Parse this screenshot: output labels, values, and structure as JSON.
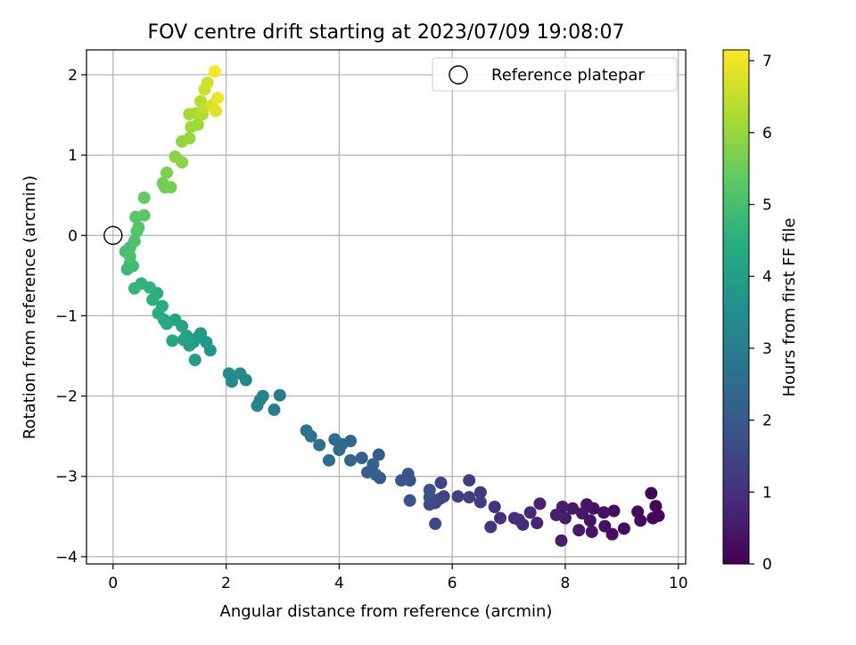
{
  "chart_data": {
    "type": "scatter",
    "title": "FOV centre drift starting at 2023/07/09 19:08:07",
    "xlabel": "Angular distance from reference (arcmin)",
    "ylabel": "Rotation from reference (arcmin)",
    "xlim": [
      -0.47,
      10.13
    ],
    "ylim": [
      -4.09,
      2.31
    ],
    "xticks": [
      0,
      2,
      4,
      6,
      8,
      10
    ],
    "yticks": [
      -4,
      -3,
      -2,
      -1,
      0,
      1,
      2
    ],
    "xtick_labels": [
      "0",
      "2",
      "4",
      "6",
      "8",
      "10"
    ],
    "ytick_labels": [
      "−4",
      "−3",
      "−2",
      "−1",
      "0",
      "1",
      "2"
    ],
    "grid": true,
    "legend": {
      "position": "top-right",
      "entries": [
        {
          "label": "Reference platepar",
          "marker": "open-circle"
        }
      ]
    },
    "reference_point": {
      "x": 0,
      "y": 0
    },
    "colorbar": {
      "label": "Hours from first FF file",
      "colormap": "viridis",
      "range": [
        0,
        7.15
      ],
      "ticks": [
        0,
        1,
        2,
        3,
        4,
        5,
        6,
        7
      ],
      "tick_labels": [
        "0",
        "1",
        "2",
        "3",
        "4",
        "5",
        "6",
        "7"
      ]
    },
    "points": [
      {
        "x": 9.52,
        "y": -3.21,
        "t": 0.05
      },
      {
        "x": 9.6,
        "y": -3.37,
        "t": 0.08
      },
      {
        "x": 9.65,
        "y": -3.49,
        "t": 0.1
      },
      {
        "x": 9.55,
        "y": -3.52,
        "t": 0.12
      },
      {
        "x": 9.33,
        "y": -3.55,
        "t": 0.15
      },
      {
        "x": 9.28,
        "y": -3.44,
        "t": 0.18
      },
      {
        "x": 9.04,
        "y": -3.65,
        "t": 0.2
      },
      {
        "x": 8.86,
        "y": -3.43,
        "t": 0.23
      },
      {
        "x": 8.83,
        "y": -3.72,
        "t": 0.26
      },
      {
        "x": 8.7,
        "y": -3.62,
        "t": 0.3
      },
      {
        "x": 8.68,
        "y": -3.45,
        "t": 0.32
      },
      {
        "x": 8.5,
        "y": -3.4,
        "t": 0.35
      },
      {
        "x": 8.47,
        "y": -3.69,
        "t": 0.38
      },
      {
        "x": 8.44,
        "y": -3.55,
        "t": 0.4
      },
      {
        "x": 8.38,
        "y": -3.35,
        "t": 0.42
      },
      {
        "x": 8.3,
        "y": -3.46,
        "t": 0.45
      },
      {
        "x": 8.24,
        "y": -3.67,
        "t": 0.48
      },
      {
        "x": 8.13,
        "y": -3.4,
        "t": 0.5
      },
      {
        "x": 8.0,
        "y": -3.52,
        "t": 0.55
      },
      {
        "x": 7.95,
        "y": -3.38,
        "t": 0.58
      },
      {
        "x": 7.93,
        "y": -3.8,
        "t": 0.6
      },
      {
        "x": 7.84,
        "y": -3.48,
        "t": 0.65
      },
      {
        "x": 7.55,
        "y": -3.34,
        "t": 0.7
      },
      {
        "x": 7.5,
        "y": -3.58,
        "t": 0.75
      },
      {
        "x": 7.38,
        "y": -3.45,
        "t": 0.8
      },
      {
        "x": 7.25,
        "y": -3.6,
        "t": 0.85
      },
      {
        "x": 7.18,
        "y": -3.54,
        "t": 0.9
      },
      {
        "x": 7.1,
        "y": -3.52,
        "t": 0.95
      },
      {
        "x": 6.85,
        "y": -3.52,
        "t": 1.0
      },
      {
        "x": 6.75,
        "y": -3.38,
        "t": 1.05
      },
      {
        "x": 6.68,
        "y": -3.63,
        "t": 1.1
      },
      {
        "x": 6.5,
        "y": -3.2,
        "t": 1.15
      },
      {
        "x": 6.5,
        "y": -3.32,
        "t": 1.2
      },
      {
        "x": 6.3,
        "y": -3.05,
        "t": 1.25
      },
      {
        "x": 6.3,
        "y": -3.26,
        "t": 1.3
      },
      {
        "x": 6.1,
        "y": -3.25,
        "t": 1.35
      },
      {
        "x": 5.85,
        "y": -3.25,
        "t": 1.4
      },
      {
        "x": 5.8,
        "y": -3.08,
        "t": 1.45
      },
      {
        "x": 5.78,
        "y": -3.28,
        "t": 1.5
      },
      {
        "x": 5.7,
        "y": -3.33,
        "t": 1.55
      },
      {
        "x": 5.7,
        "y": -3.59,
        "t": 1.6
      },
      {
        "x": 5.6,
        "y": -3.35,
        "t": 1.65
      },
      {
        "x": 5.6,
        "y": -3.26,
        "t": 1.7
      },
      {
        "x": 5.6,
        "y": -3.17,
        "t": 1.75
      },
      {
        "x": 5.25,
        "y": -3.3,
        "t": 1.8
      },
      {
        "x": 5.25,
        "y": -3.05,
        "t": 1.85
      },
      {
        "x": 5.22,
        "y": -2.97,
        "t": 1.9
      },
      {
        "x": 5.1,
        "y": -3.05,
        "t": 1.95
      },
      {
        "x": 4.72,
        "y": -3.02,
        "t": 2.0
      },
      {
        "x": 4.7,
        "y": -2.73,
        "t": 2.05
      },
      {
        "x": 4.65,
        "y": -2.98,
        "t": 2.1
      },
      {
        "x": 4.6,
        "y": -2.85,
        "t": 2.15
      },
      {
        "x": 4.5,
        "y": -2.95,
        "t": 2.2
      },
      {
        "x": 4.4,
        "y": -2.77,
        "t": 2.25
      },
      {
        "x": 4.2,
        "y": -2.8,
        "t": 2.3
      },
      {
        "x": 4.2,
        "y": -2.56,
        "t": 2.35
      },
      {
        "x": 4.05,
        "y": -2.6,
        "t": 2.4
      },
      {
        "x": 4.0,
        "y": -2.67,
        "t": 2.45
      },
      {
        "x": 3.92,
        "y": -2.54,
        "t": 2.5
      },
      {
        "x": 3.82,
        "y": -2.8,
        "t": 2.55
      },
      {
        "x": 3.65,
        "y": -2.61,
        "t": 2.6
      },
      {
        "x": 3.5,
        "y": -2.5,
        "t": 2.65
      },
      {
        "x": 3.42,
        "y": -2.43,
        "t": 2.7
      },
      {
        "x": 2.95,
        "y": -1.99,
        "t": 3.0
      },
      {
        "x": 2.85,
        "y": -2.17,
        "t": 3.05
      },
      {
        "x": 2.65,
        "y": -2.0,
        "t": 3.1
      },
      {
        "x": 2.6,
        "y": -2.05,
        "t": 3.15
      },
      {
        "x": 2.55,
        "y": -2.12,
        "t": 3.2
      },
      {
        "x": 2.35,
        "y": -1.8,
        "t": 3.3
      },
      {
        "x": 2.25,
        "y": -1.72,
        "t": 3.35
      },
      {
        "x": 2.1,
        "y": -1.82,
        "t": 3.4
      },
      {
        "x": 2.05,
        "y": -1.72,
        "t": 3.45
      },
      {
        "x": 1.72,
        "y": -1.43,
        "t": 3.7
      },
      {
        "x": 1.65,
        "y": -1.33,
        "t": 3.75
      },
      {
        "x": 1.55,
        "y": -1.22,
        "t": 3.8
      },
      {
        "x": 1.5,
        "y": -1.27,
        "t": 3.85
      },
      {
        "x": 1.45,
        "y": -1.55,
        "t": 3.9
      },
      {
        "x": 1.42,
        "y": -1.33,
        "t": 3.95
      },
      {
        "x": 1.35,
        "y": -1.37,
        "t": 4.0
      },
      {
        "x": 1.3,
        "y": -1.25,
        "t": 4.05
      },
      {
        "x": 1.25,
        "y": -1.3,
        "t": 4.1
      },
      {
        "x": 1.22,
        "y": -1.13,
        "t": 4.15
      },
      {
        "x": 1.1,
        "y": -1.05,
        "t": 4.2
      },
      {
        "x": 1.05,
        "y": -1.31,
        "t": 4.25
      },
      {
        "x": 0.95,
        "y": -1.1,
        "t": 4.3
      },
      {
        "x": 0.9,
        "y": -1.05,
        "t": 4.35
      },
      {
        "x": 0.87,
        "y": -0.88,
        "t": 4.4
      },
      {
        "x": 0.8,
        "y": -0.97,
        "t": 4.45
      },
      {
        "x": 0.78,
        "y": -0.72,
        "t": 4.5
      },
      {
        "x": 0.7,
        "y": -0.8,
        "t": 4.55
      },
      {
        "x": 0.65,
        "y": -0.65,
        "t": 4.6
      },
      {
        "x": 0.5,
        "y": -0.6,
        "t": 4.65
      },
      {
        "x": 0.38,
        "y": -0.66,
        "t": 4.7
      },
      {
        "x": 0.25,
        "y": -0.42,
        "t": 4.8
      },
      {
        "x": 0.3,
        "y": -0.35,
        "t": 4.85
      },
      {
        "x": 0.35,
        "y": -0.38,
        "t": 4.9
      },
      {
        "x": 0.22,
        "y": -0.2,
        "t": 4.95
      },
      {
        "x": 0.3,
        "y": -0.15,
        "t": 5.0
      },
      {
        "x": 0.3,
        "y": -0.26,
        "t": 5.05
      },
      {
        "x": 0.38,
        "y": -0.07,
        "t": 5.1
      },
      {
        "x": 0.42,
        "y": 0.05,
        "t": 5.15
      },
      {
        "x": 0.45,
        "y": 0.1,
        "t": 5.2
      },
      {
        "x": 0.4,
        "y": 0.23,
        "t": 5.25
      },
      {
        "x": 0.55,
        "y": 0.25,
        "t": 5.3
      },
      {
        "x": 0.55,
        "y": 0.47,
        "t": 5.4
      },
      {
        "x": 0.92,
        "y": 0.6,
        "t": 5.55
      },
      {
        "x": 0.88,
        "y": 0.65,
        "t": 5.6
      },
      {
        "x": 1.02,
        "y": 0.6,
        "t": 5.65
      },
      {
        "x": 0.95,
        "y": 0.78,
        "t": 5.7
      },
      {
        "x": 1.1,
        "y": 0.98,
        "t": 5.85
      },
      {
        "x": 1.22,
        "y": 0.91,
        "t": 5.9
      },
      {
        "x": 1.22,
        "y": 1.17,
        "t": 5.95
      },
      {
        "x": 1.35,
        "y": 1.21,
        "t": 6.0
      },
      {
        "x": 1.38,
        "y": 1.35,
        "t": 6.05
      },
      {
        "x": 1.5,
        "y": 1.38,
        "t": 6.1
      },
      {
        "x": 1.35,
        "y": 1.51,
        "t": 6.15
      },
      {
        "x": 1.47,
        "y": 1.52,
        "t": 6.2
      },
      {
        "x": 1.58,
        "y": 1.51,
        "t": 6.3
      },
      {
        "x": 1.55,
        "y": 1.67,
        "t": 6.35
      },
      {
        "x": 1.62,
        "y": 1.6,
        "t": 6.45
      },
      {
        "x": 1.62,
        "y": 1.82,
        "t": 6.55
      },
      {
        "x": 1.67,
        "y": 1.9,
        "t": 6.65
      },
      {
        "x": 1.75,
        "y": 1.62,
        "t": 6.75
      },
      {
        "x": 1.82,
        "y": 1.55,
        "t": 6.85
      },
      {
        "x": 1.85,
        "y": 1.71,
        "t": 6.95
      },
      {
        "x": 1.8,
        "y": 2.04,
        "t": 7.1
      }
    ]
  }
}
